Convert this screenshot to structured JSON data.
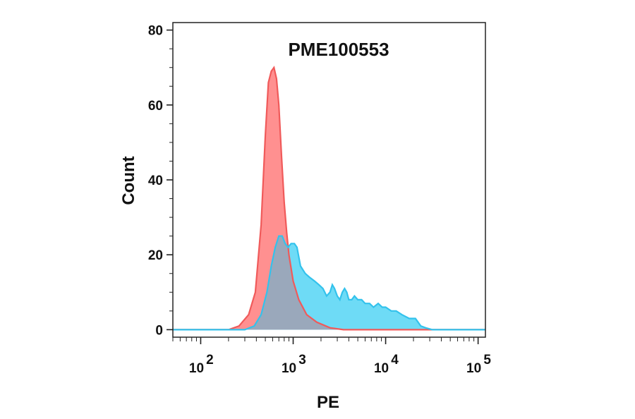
{
  "chart_data": {
    "type": "area",
    "title": "PME100553",
    "xlabel": "PE",
    "ylabel": "Count",
    "x_scale": "log",
    "xlim": [
      50,
      120000
    ],
    "ylim": [
      -2,
      82
    ],
    "y_ticks": [
      0,
      20,
      40,
      60,
      80
    ],
    "x_ticks": [
      {
        "value": 100,
        "base": "10",
        "exp": "2"
      },
      {
        "value": 1000,
        "base": "10",
        "exp": "3"
      },
      {
        "value": 10000,
        "base": "10",
        "exp": "4"
      },
      {
        "value": 100000,
        "base": "10",
        "exp": "5"
      }
    ],
    "grid": false,
    "overlap_color": "#9aa8bb",
    "series": [
      {
        "color": "#ff8a8a",
        "stroke": "#f05a5a",
        "points": [
          [
            50,
            0
          ],
          [
            200,
            0
          ],
          [
            260,
            1
          ],
          [
            330,
            4
          ],
          [
            390,
            10
          ],
          [
            450,
            28
          ],
          [
            500,
            52
          ],
          [
            540,
            66
          ],
          [
            580,
            69
          ],
          [
            620,
            70
          ],
          [
            660,
            67
          ],
          [
            700,
            60
          ],
          [
            750,
            46
          ],
          [
            800,
            34
          ],
          [
            850,
            26
          ],
          [
            900,
            20
          ],
          [
            1000,
            13
          ],
          [
            1150,
            8
          ],
          [
            1400,
            4
          ],
          [
            1800,
            2
          ],
          [
            2500,
            0.5
          ],
          [
            3500,
            0
          ],
          [
            120000,
            0
          ]
        ]
      },
      {
        "color": "#66d9f6",
        "stroke": "#33c2ec",
        "points": [
          [
            50,
            0
          ],
          [
            300,
            0
          ],
          [
            380,
            1
          ],
          [
            450,
            4
          ],
          [
            520,
            10
          ],
          [
            580,
            17
          ],
          [
            640,
            22
          ],
          [
            700,
            25
          ],
          [
            760,
            25
          ],
          [
            820,
            23
          ],
          [
            880,
            22
          ],
          [
            950,
            23
          ],
          [
            1030,
            23
          ],
          [
            1100,
            22
          ],
          [
            1200,
            17
          ],
          [
            1350,
            15
          ],
          [
            1500,
            14
          ],
          [
            1700,
            13
          ],
          [
            1900,
            12
          ],
          [
            2100,
            11
          ],
          [
            2300,
            9
          ],
          [
            2500,
            10
          ],
          [
            2650,
            12
          ],
          [
            2800,
            11
          ],
          [
            3000,
            9
          ],
          [
            3200,
            8
          ],
          [
            3400,
            10
          ],
          [
            3600,
            11
          ],
          [
            3800,
            10
          ],
          [
            4000,
            8
          ],
          [
            4300,
            8
          ],
          [
            4600,
            9
          ],
          [
            5000,
            8
          ],
          [
            5500,
            8
          ],
          [
            6000,
            7
          ],
          [
            6700,
            7
          ],
          [
            7400,
            6
          ],
          [
            8300,
            7
          ],
          [
            9200,
            6
          ],
          [
            10000,
            6
          ],
          [
            11500,
            5
          ],
          [
            13000,
            5
          ],
          [
            15000,
            4
          ],
          [
            18000,
            3
          ],
          [
            21000,
            3
          ],
          [
            24000,
            1
          ],
          [
            27000,
            0.5
          ],
          [
            32000,
            0
          ],
          [
            120000,
            0
          ]
        ]
      }
    ]
  }
}
